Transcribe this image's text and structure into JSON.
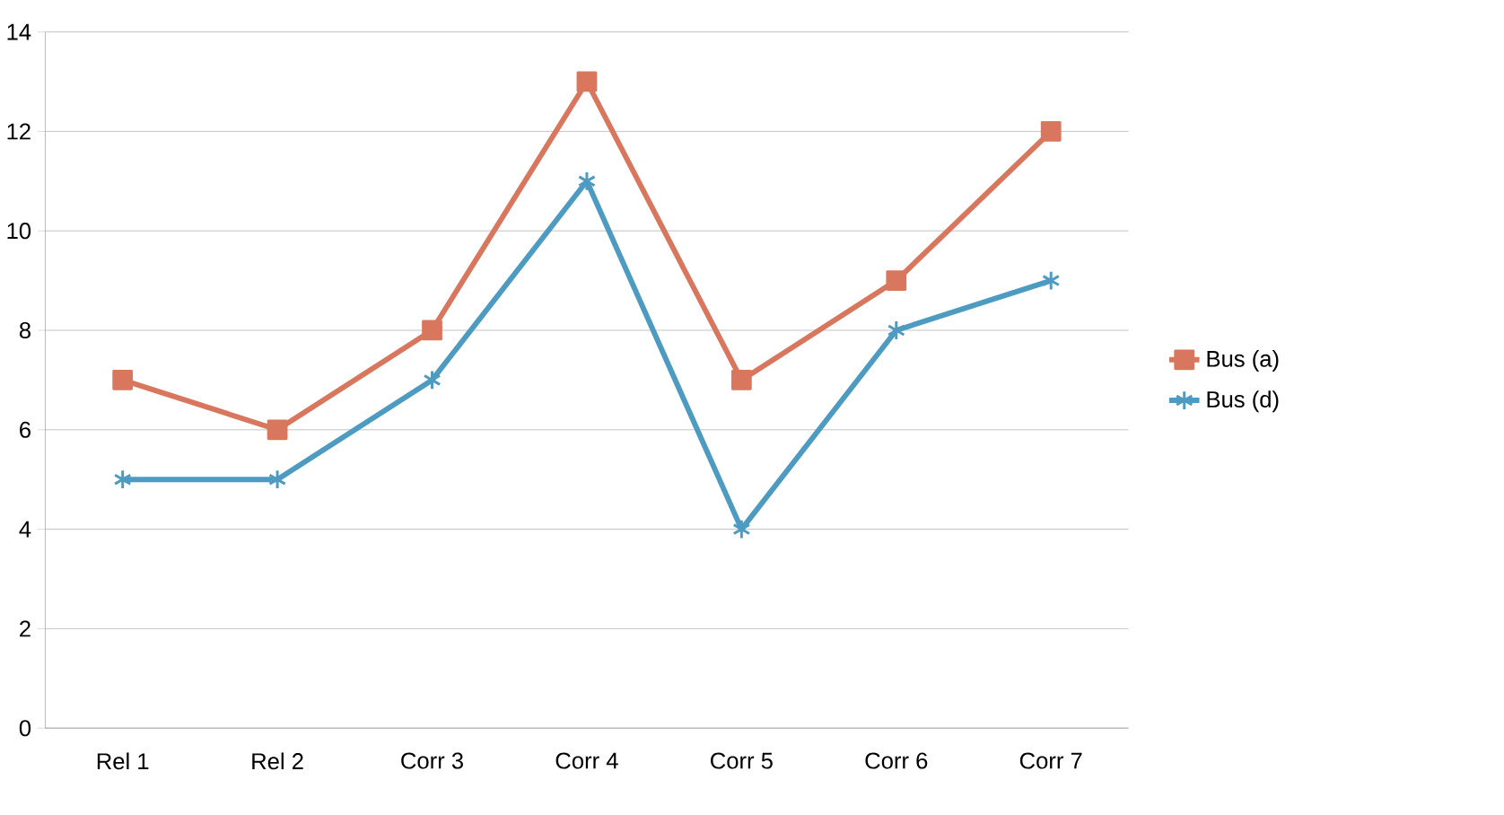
{
  "chart_data": {
    "type": "line",
    "categories": [
      "Rel 1",
      "Rel 2",
      "Corr 3",
      "Corr 4",
      "Corr 5",
      "Corr 6",
      "Corr 7"
    ],
    "series": [
      {
        "name": "Bus  (a)",
        "color": "#d9775e",
        "marker": "square",
        "values": [
          7,
          6,
          8,
          13,
          7,
          9,
          12
        ]
      },
      {
        "name": "Bus  (d)",
        "color": "#4e9bc2",
        "marker": "cross",
        "values": [
          5,
          5,
          7,
          11,
          4,
          8,
          9
        ]
      }
    ],
    "ylim": [
      0,
      14
    ],
    "yticks": [
      0,
      2,
      4,
      6,
      8,
      10,
      12,
      14
    ],
    "grid": "y",
    "legend": "right"
  }
}
